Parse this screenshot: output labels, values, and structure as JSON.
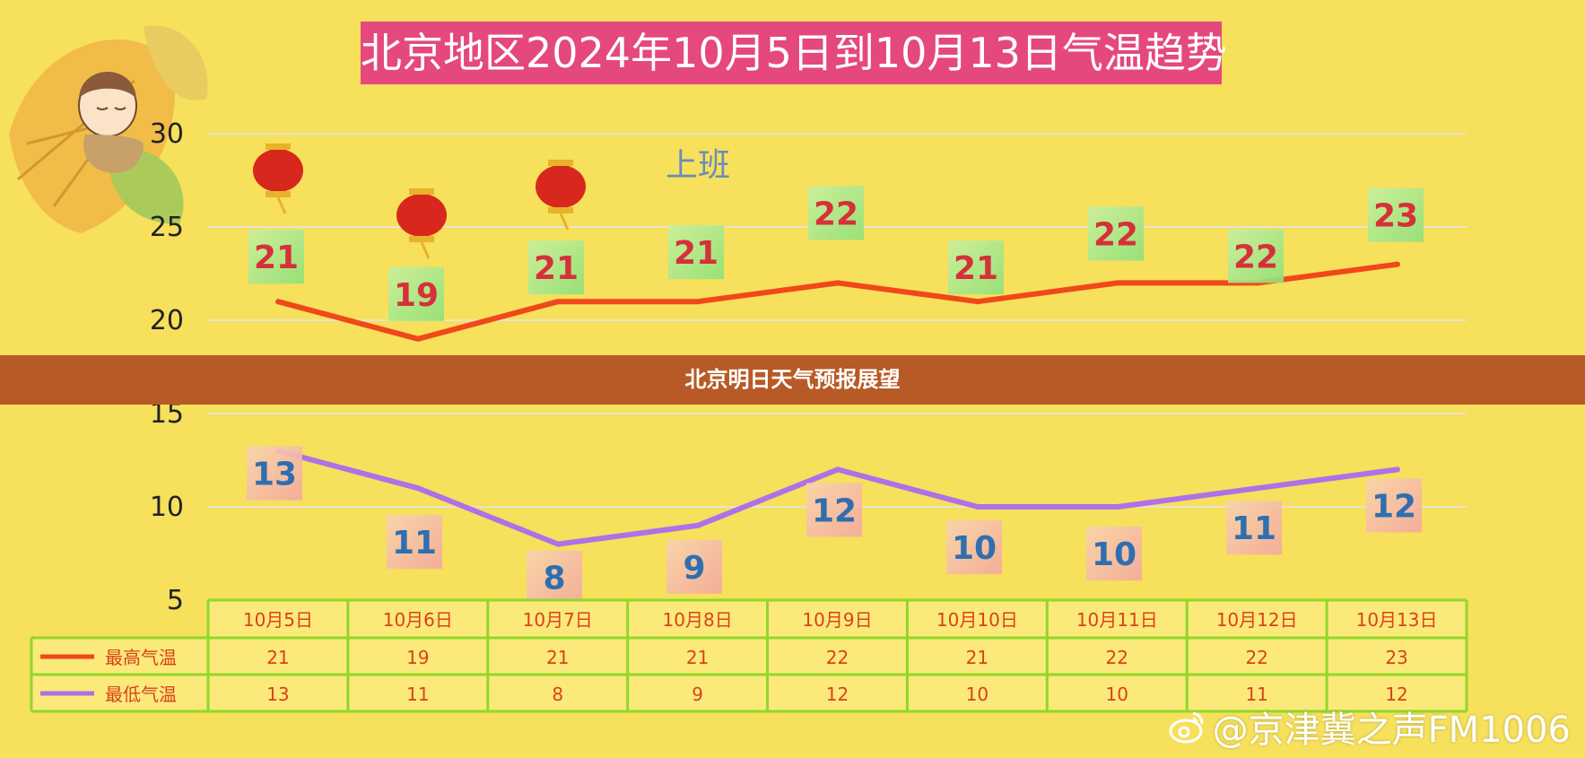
{
  "title": "北京地区2024年10月5日到10月13日气温趋势",
  "banner": "北京明日天气预报展望",
  "watermark": "@京津冀之声FM1006",
  "overlay_text": "上班",
  "colors": {
    "background": "#f6e05c",
    "high_line": "#f0481a",
    "low_line": "#b070e8",
    "high_label_text": "#d6303a",
    "low_label_text": "#2f6fb0",
    "table_border": "#8fd82a",
    "title_bg": "#e5487c",
    "banner_bg": "#b85a26"
  },
  "chart_data": {
    "type": "line",
    "categories": [
      "10月5日",
      "10月6日",
      "10月7日",
      "10月8日",
      "10月9日",
      "10月10日",
      "10月11日",
      "10月12日",
      "10月13日"
    ],
    "series": [
      {
        "name": "最高气温",
        "values": [
          21,
          19,
          21,
          21,
          22,
          21,
          22,
          22,
          23
        ]
      },
      {
        "name": "最低气温",
        "values": [
          13,
          11,
          8,
          9,
          12,
          10,
          10,
          11,
          12
        ]
      }
    ],
    "yticks": [
      30,
      25,
      20,
      15,
      10,
      5
    ],
    "ylim": [
      5,
      30
    ],
    "grid": true,
    "table": true
  }
}
